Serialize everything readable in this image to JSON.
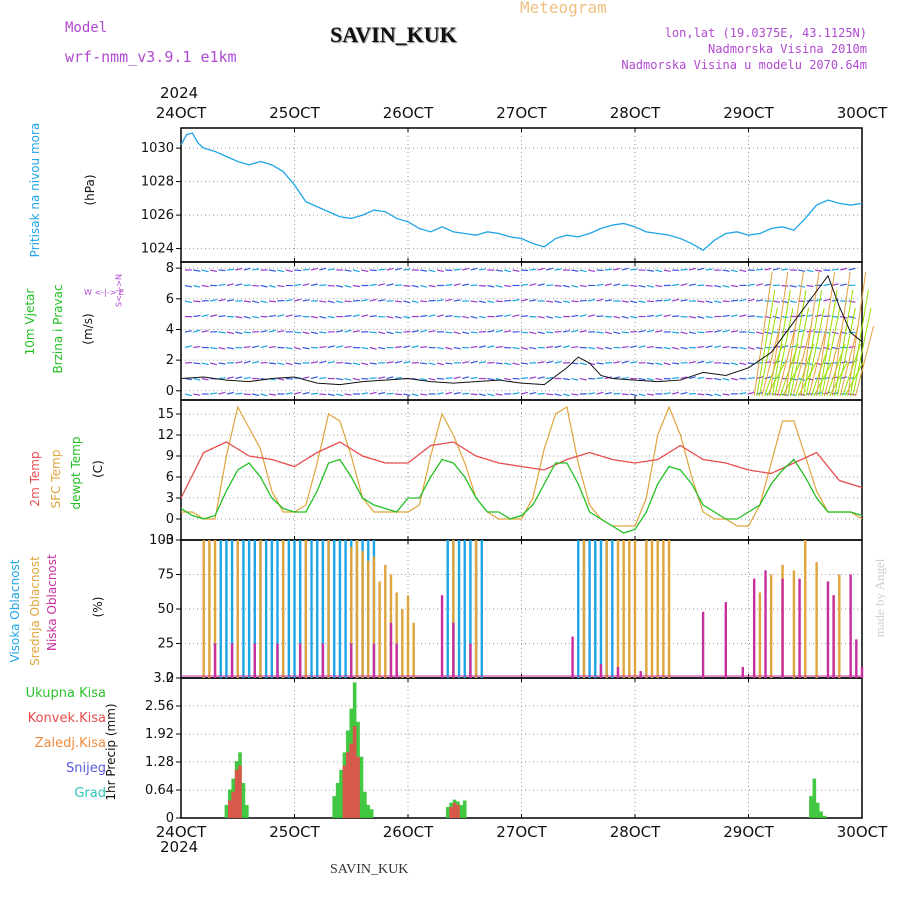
{
  "header": {
    "model_label": "Model",
    "model_value": "wrf-nmm_v3.9.1  e1km",
    "station": "SAVIN_KUK",
    "meteogram": "Meteogram",
    "lonlat": "lon,lat (19.0375E, 43.1125N)",
    "altitude": "Nadmorska Visina 2010m",
    "model_altitude": "Nadmorska Visina u modelu 2070.64m"
  },
  "footer": {
    "year": "2024",
    "station": "SAVIN_KUK",
    "credit": "made by Angel"
  },
  "colors": {
    "pressure": "#1ea5e6",
    "t2m": "#e84c4c",
    "tsfc": "#e0a43c",
    "dew": "#22c022",
    "purple": "#9b3ecf",
    "grid": "#9a9a9a"
  },
  "panel_labels": {
    "pressure": [
      "Pritisak na nivou mora",
      "(hPa)"
    ],
    "wind": [
      "10m Vjetar",
      "Brzina i Pravac",
      "(m/s)"
    ],
    "wind_compass": "W  <-|->  E",
    "wind_compass_v": "S<-|->N",
    "temp": [
      "2m Temp",
      "SFC Temp",
      "dewpt Temp",
      "(C)"
    ],
    "cloud": [
      "Visoka Oblacnost",
      "Srednja Oblacnost",
      "Niska Oblacnost",
      "(%)"
    ],
    "precip_legend": [
      "Ukupna  Kisa",
      "Konvek.Kisa",
      "Zaledj.Kisa",
      "Snijeg",
      "Grad"
    ],
    "precip_axis": "1hr Precip (mm)"
  },
  "chart_data": [
    {
      "type": "line",
      "title": "SAVIN_KUK",
      "ylabel": "(hPa)",
      "x_ticks": [
        "24OCT",
        "25OCT",
        "26OCT",
        "27OCT",
        "28OCT",
        "29OCT",
        "30OCT"
      ],
      "x_year": "2024",
      "ylim": [
        1023.2,
        1031.2
      ],
      "y_ticks": [
        1024,
        1026,
        1028,
        1030
      ],
      "grid": true,
      "series": [
        {
          "name": "Pritisak na nivou mora",
          "x": [
            0,
            0.05,
            0.1,
            0.15,
            0.2,
            0.3,
            0.4,
            0.5,
            0.6,
            0.7,
            0.8,
            0.9,
            1.0,
            1.1,
            1.2,
            1.3,
            1.4,
            1.5,
            1.6,
            1.7,
            1.8,
            1.9,
            2.0,
            2.1,
            2.2,
            2.3,
            2.4,
            2.5,
            2.6,
            2.7,
            2.8,
            2.9,
            3.0,
            3.1,
            3.2,
            3.3,
            3.4,
            3.5,
            3.6,
            3.7,
            3.8,
            3.9,
            4.0,
            4.1,
            4.2,
            4.3,
            4.4,
            4.5,
            4.6,
            4.7,
            4.8,
            4.9,
            5.0,
            5.1,
            5.2,
            5.3,
            5.4,
            5.5,
            5.6,
            5.7,
            5.8,
            5.9,
            6.0
          ],
          "values": [
            1030.2,
            1030.8,
            1030.9,
            1030.3,
            1030.0,
            1029.8,
            1029.5,
            1029.2,
            1029.0,
            1029.2,
            1029.0,
            1028.6,
            1027.8,
            1026.8,
            1026.5,
            1026.2,
            1025.9,
            1025.8,
            1026.0,
            1026.3,
            1026.2,
            1025.8,
            1025.6,
            1025.2,
            1025.0,
            1025.3,
            1025.0,
            1024.9,
            1024.8,
            1025.0,
            1024.9,
            1024.7,
            1024.6,
            1024.3,
            1024.1,
            1024.6,
            1024.8,
            1024.7,
            1024.9,
            1025.2,
            1025.4,
            1025.5,
            1025.3,
            1025.0,
            1024.9,
            1024.8,
            1024.6,
            1024.3,
            1023.9,
            1024.5,
            1024.9,
            1025.0,
            1024.8,
            1024.9,
            1025.2,
            1025.3,
            1025.1,
            1025.8,
            1026.6,
            1026.9,
            1026.7,
            1026.6,
            1026.7
          ]
        }
      ]
    },
    {
      "type": "line",
      "ylabel": "(m/s)",
      "x_ticks": [
        "24OCT",
        "25OCT",
        "26OCT",
        "27OCT",
        "28OCT",
        "29OCT",
        "30OCT"
      ],
      "ylim": [
        -0.6,
        8.4
      ],
      "y_ticks": [
        0,
        2,
        4,
        6,
        8
      ],
      "grid": true,
      "series": [
        {
          "name": "Brzina",
          "x": [
            0,
            0.2,
            0.4,
            0.6,
            0.8,
            1.0,
            1.2,
            1.4,
            1.6,
            1.8,
            2.0,
            2.2,
            2.4,
            2.6,
            2.8,
            3.0,
            3.2,
            3.4,
            3.5,
            3.6,
            3.7,
            3.8,
            4.0,
            4.2,
            4.4,
            4.6,
            4.8,
            5.0,
            5.2,
            5.4,
            5.6,
            5.7,
            5.8,
            5.9,
            6.0
          ],
          "values": [
            0.8,
            0.9,
            0.7,
            0.6,
            0.8,
            0.9,
            0.5,
            0.4,
            0.6,
            0.7,
            0.8,
            0.6,
            0.5,
            0.6,
            0.7,
            0.5,
            0.4,
            1.5,
            2.2,
            1.8,
            1.0,
            0.8,
            0.7,
            0.6,
            0.7,
            1.2,
            1.0,
            1.5,
            2.5,
            4.5,
            6.5,
            7.5,
            5.5,
            3.8,
            3.2
          ]
        }
      ]
    },
    {
      "type": "line",
      "ylabel": "(C)",
      "x_ticks": [
        "24OCT",
        "25OCT",
        "26OCT",
        "27OCT",
        "28OCT",
        "29OCT",
        "30OCT"
      ],
      "ylim": [
        -3,
        17
      ],
      "y_ticks": [
        -3,
        0,
        3,
        6,
        9,
        12,
        15
      ],
      "grid": true,
      "series": [
        {
          "name": "2m Temp",
          "x": [
            0,
            0.2,
            0.4,
            0.6,
            0.8,
            1.0,
            1.2,
            1.4,
            1.6,
            1.8,
            2.0,
            2.2,
            2.4,
            2.6,
            2.8,
            3.0,
            3.2,
            3.4,
            3.6,
            3.8,
            4.0,
            4.2,
            4.4,
            4.6,
            4.8,
            5.0,
            5.2,
            5.4,
            5.6,
            5.8,
            6.0
          ],
          "values": [
            3.0,
            9.5,
            11.0,
            9.0,
            8.5,
            7.5,
            9.5,
            11.0,
            9.0,
            8.0,
            8.0,
            10.5,
            11.0,
            9.0,
            8.0,
            7.5,
            7.0,
            8.5,
            9.5,
            8.5,
            8.0,
            8.5,
            10.5,
            8.5,
            8.0,
            7.0,
            6.5,
            8.0,
            9.5,
            5.5,
            4.5
          ]
        },
        {
          "name": "SFC Temp",
          "x": [
            0,
            0.1,
            0.2,
            0.3,
            0.4,
            0.5,
            0.6,
            0.7,
            0.8,
            0.9,
            1.0,
            1.1,
            1.2,
            1.3,
            1.4,
            1.5,
            1.6,
            1.7,
            1.8,
            1.9,
            2.0,
            2.1,
            2.2,
            2.3,
            2.4,
            2.5,
            2.6,
            2.7,
            2.8,
            2.9,
            3.0,
            3.1,
            3.2,
            3.3,
            3.4,
            3.5,
            3.6,
            3.7,
            3.8,
            3.9,
            4.0,
            4.1,
            4.2,
            4.3,
            4.4,
            4.5,
            4.6,
            4.7,
            4.8,
            4.9,
            5.0,
            5.1,
            5.2,
            5.3,
            5.4,
            5.5,
            5.6,
            5.7,
            5.8,
            5.9,
            6.0
          ],
          "values": [
            1,
            1,
            0,
            0,
            9,
            16,
            13,
            10,
            4,
            1,
            1,
            2,
            8,
            15,
            14,
            9,
            3,
            1,
            1,
            1,
            1,
            2,
            9,
            15,
            12,
            8,
            3,
            1,
            0,
            0,
            0,
            3,
            10,
            15,
            16,
            8,
            2,
            0,
            -1,
            -1,
            -1,
            3,
            12,
            16,
            12,
            6,
            1,
            0,
            0,
            -1,
            -1,
            2,
            8,
            14,
            14,
            9,
            4,
            1,
            1,
            1,
            0
          ]
        },
        {
          "name": "dewpt Temp",
          "x": [
            0,
            0.1,
            0.2,
            0.3,
            0.4,
            0.5,
            0.6,
            0.7,
            0.8,
            0.9,
            1.0,
            1.1,
            1.2,
            1.3,
            1.4,
            1.5,
            1.6,
            1.7,
            1.8,
            1.9,
            2.0,
            2.1,
            2.2,
            2.3,
            2.4,
            2.5,
            2.6,
            2.7,
            2.8,
            2.9,
            3.0,
            3.1,
            3.2,
            3.3,
            3.4,
            3.5,
            3.6,
            3.7,
            3.8,
            3.9,
            4.0,
            4.1,
            4.2,
            4.3,
            4.4,
            4.5,
            4.6,
            4.7,
            4.8,
            4.9,
            5.0,
            5.1,
            5.2,
            5.3,
            5.4,
            5.5,
            5.6,
            5.7,
            5.8,
            5.9,
            6.0
          ],
          "values": [
            1.5,
            0.5,
            0,
            0.5,
            4,
            7,
            8,
            6,
            3,
            1.5,
            1,
            1,
            4,
            8,
            8.5,
            6,
            3,
            2,
            1.5,
            1,
            3,
            3,
            6,
            8.5,
            8,
            6,
            3,
            1,
            1,
            0,
            0.5,
            2,
            5,
            8,
            8,
            5,
            1,
            0,
            -1,
            -2,
            -1.5,
            1,
            5,
            7.5,
            7,
            5,
            2,
            1,
            0,
            0,
            1,
            2,
            5,
            7,
            8.5,
            6,
            3,
            1,
            1,
            1,
            0.5
          ]
        }
      ]
    },
    {
      "type": "bar",
      "ylabel": "(%)",
      "x_ticks": [
        "24OCT",
        "25OCT",
        "26OCT",
        "27OCT",
        "28OCT",
        "29OCT",
        "30OCT"
      ],
      "ylim": [
        0,
        100
      ],
      "y_ticks": [
        0,
        25,
        50,
        75,
        100
      ],
      "grid": true,
      "series": [
        {
          "name": "Visoka Oblacnost",
          "color": "#1ea5e6",
          "x": [
            0.35,
            0.4,
            0.45,
            0.5,
            0.55,
            0.6,
            0.65,
            0.7,
            0.75,
            0.8,
            0.85,
            0.9,
            0.95,
            1.0,
            1.05,
            1.1,
            1.15,
            1.2,
            1.25,
            1.3,
            1.35,
            1.4,
            1.45,
            1.5,
            1.55,
            1.6,
            1.65,
            1.7,
            2.35,
            2.4,
            2.45,
            2.5,
            2.55,
            2.6,
            2.65,
            3.5,
            3.55,
            3.6,
            3.65,
            3.7,
            3.75,
            3.8
          ],
          "values": [
            100,
            100,
            100,
            100,
            100,
            100,
            100,
            100,
            100,
            100,
            100,
            100,
            100,
            100,
            100,
            100,
            100,
            100,
            100,
            100,
            100,
            100,
            100,
            100,
            100,
            100,
            100,
            100,
            100,
            100,
            100,
            100,
            100,
            100,
            100,
            100,
            100,
            100,
            100,
            100,
            100,
            100
          ]
        },
        {
          "name": "Srednja Oblacnost",
          "color": "#e0a43c",
          "x": [
            0.2,
            0.25,
            0.3,
            0.5,
            0.7,
            0.9,
            1.1,
            1.3,
            1.5,
            1.55,
            1.6,
            1.65,
            1.7,
            1.75,
            1.8,
            1.85,
            1.9,
            1.95,
            2.0,
            2.05,
            2.4,
            2.6,
            3.55,
            3.75,
            3.85,
            3.9,
            3.95,
            4.0,
            4.1,
            4.15,
            4.2,
            4.25,
            4.3,
            5.1,
            5.2,
            5.3,
            5.4,
            5.5,
            5.6,
            5.75,
            5.8
          ],
          "values": [
            100,
            100,
            100,
            100,
            100,
            100,
            100,
            100,
            95,
            100,
            92,
            85,
            88,
            70,
            82,
            75,
            62,
            50,
            60,
            40,
            100,
            100,
            100,
            100,
            100,
            100,
            100,
            100,
            100,
            100,
            100,
            100,
            100,
            62,
            75,
            82,
            78,
            100,
            84,
            60,
            75
          ]
        },
        {
          "name": "Niska Oblacnost",
          "color": "#c72e9e",
          "x": [
            0.3,
            0.45,
            0.65,
            0.85,
            1.05,
            1.25,
            1.5,
            1.7,
            1.85,
            1.9,
            2.3,
            2.4,
            2.55,
            3.45,
            3.7,
            3.85,
            4.05,
            4.6,
            4.8,
            4.95,
            5.05,
            5.15,
            5.3,
            5.45,
            5.7,
            5.75,
            5.9,
            5.95,
            6.0
          ],
          "values": [
            25,
            25,
            25,
            25,
            25,
            25,
            25,
            25,
            40,
            25,
            60,
            40,
            25,
            30,
            10,
            8,
            5,
            48,
            55,
            8,
            72,
            78,
            72,
            72,
            70,
            60,
            75,
            28,
            8
          ]
        }
      ]
    },
    {
      "type": "bar",
      "ylabel": "1hr Precip (mm)",
      "x_ticks": [
        "24OCT",
        "25OCT",
        "26OCT",
        "27OCT",
        "28OCT",
        "29OCT",
        "30OCT"
      ],
      "x_year": "2024",
      "ylim": [
        0,
        3.2
      ],
      "y_ticks": [
        0,
        0.64,
        1.28,
        1.92,
        2.56,
        3.2
      ],
      "grid": true,
      "series": [
        {
          "name": "Ukupna  Kisa",
          "color": "#2ec22e",
          "x": [
            0.4,
            0.43,
            0.46,
            0.49,
            0.52,
            0.55,
            0.58,
            1.35,
            1.38,
            1.41,
            1.44,
            1.47,
            1.5,
            1.53,
            1.56,
            1.59,
            1.62,
            1.65,
            1.68,
            2.35,
            2.38,
            2.41,
            2.44,
            2.47,
            2.5,
            5.55,
            5.58,
            5.61,
            5.64,
            5.67
          ],
          "values": [
            0.3,
            0.65,
            0.9,
            1.3,
            1.5,
            0.8,
            0.3,
            0.5,
            0.8,
            1.1,
            1.5,
            2.0,
            2.5,
            3.1,
            2.2,
            1.4,
            0.6,
            0.3,
            0.2,
            0.25,
            0.35,
            0.42,
            0.38,
            0.3,
            0.4,
            0.5,
            0.9,
            0.35,
            0.15,
            0.05
          ]
        },
        {
          "name": "Konvek.Kisa",
          "color": "#e84c4c",
          "x": [
            0.43,
            0.46,
            0.49,
            0.52,
            1.44,
            1.47,
            1.5,
            1.53,
            1.56,
            2.38,
            2.41,
            2.44
          ],
          "values": [
            0.4,
            0.6,
            1.1,
            1.2,
            1.2,
            1.5,
            1.7,
            2.1,
            1.4,
            0.25,
            0.35,
            0.3
          ]
        },
        {
          "name": "Zaledj.Kisa",
          "color": "#f08a3c",
          "x": [],
          "values": []
        },
        {
          "name": "Snijeg",
          "color": "#5a5ae0",
          "x": [],
          "values": []
        },
        {
          "name": "Grad",
          "color": "#2ec4b6",
          "x": [],
          "values": []
        }
      ]
    }
  ]
}
